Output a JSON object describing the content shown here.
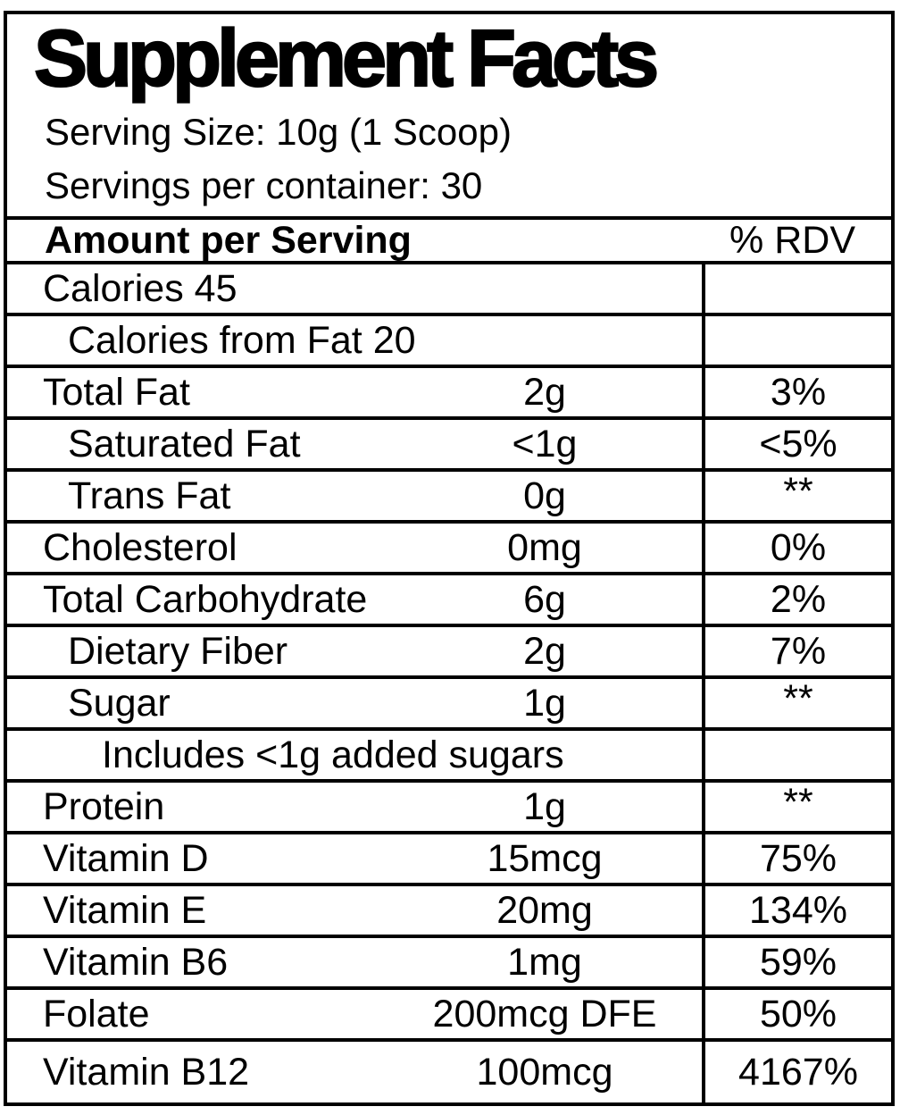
{
  "header": {
    "title": "Supplement Facts",
    "serving_size": "Serving Size: 10g (1 Scoop)",
    "servings_per_container": "Servings per container: 30"
  },
  "table": {
    "amount_header": "Amount per Serving",
    "rdv_header": "% RDV",
    "rows": [
      {
        "label": "Calories 45",
        "amount": "",
        "rdv": "",
        "indent": 1
      },
      {
        "label": "Calories from Fat 20",
        "amount": "",
        "rdv": "",
        "indent": 2
      },
      {
        "label": "Total Fat",
        "amount": "2g",
        "rdv": "3%",
        "indent": 1
      },
      {
        "label": "Saturated Fat",
        "amount": "<1g",
        "rdv": "<5%",
        "indent": 2
      },
      {
        "label": "Trans Fat",
        "amount": "0g",
        "rdv": "**",
        "indent": 2
      },
      {
        "label": "Cholesterol",
        "amount": "0mg",
        "rdv": "0%",
        "indent": 1
      },
      {
        "label": "Total Carbohydrate",
        "amount": "6g",
        "rdv": "2%",
        "indent": 1
      },
      {
        "label": "Dietary Fiber",
        "amount": "2g",
        "rdv": "7%",
        "indent": 2
      },
      {
        "label": "Sugar",
        "amount": "1g",
        "rdv": "**",
        "indent": 2
      },
      {
        "label": "Includes <1g added sugars",
        "amount": "",
        "rdv": "",
        "indent": 3
      },
      {
        "label": "Protein",
        "amount": "1g",
        "rdv": "**",
        "indent": 1
      },
      {
        "label": "Vitamin D",
        "amount": "15mcg",
        "rdv": "75%",
        "indent": 1
      },
      {
        "label": "Vitamin E",
        "amount": "20mg",
        "rdv": "134%",
        "indent": 1
      },
      {
        "label": "Vitamin B6",
        "amount": "1mg",
        "rdv": "59%",
        "indent": 1
      },
      {
        "label": "Folate",
        "amount": "200mcg DFE",
        "rdv": "50%",
        "indent": 1
      },
      {
        "label": "Vitamin B12",
        "amount": "100mcg",
        "rdv": "4167%",
        "indent": 1
      }
    ]
  },
  "colors": {
    "ink": "#000000",
    "paper": "#ffffff"
  }
}
